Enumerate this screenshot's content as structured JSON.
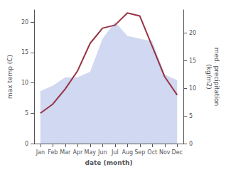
{
  "chart_data": {
    "type": "line",
    "categories": [
      "Jan",
      "Feb",
      "Mar",
      "Apr",
      "May",
      "Jun",
      "Jul",
      "Aug",
      "Sep",
      "Oct",
      "Nov",
      "Dec"
    ],
    "xlabel": "date (month)",
    "ylabel": "max temp (C)",
    "y2label": "med. precipitation\n(kg/m2)",
    "ylim": [
      0,
      22
    ],
    "yticks": [
      0,
      5,
      10,
      15,
      20
    ],
    "y2lim": [
      0,
      24.2
    ],
    "y2ticks": [
      0,
      5,
      10,
      15,
      20
    ],
    "grid": false,
    "series": [
      {
        "type": "area",
        "axis": "y2",
        "color": "#aab8e8",
        "values": [
          9.5,
          10.5,
          12.0,
          12.0,
          13.0,
          19.0,
          22.0,
          19.5,
          19.0,
          18.5,
          12.5,
          11.5
        ]
      },
      {
        "type": "line",
        "axis": "y",
        "color": "#993344",
        "values": [
          5.0,
          6.5,
          9.0,
          12.0,
          16.5,
          19.0,
          19.5,
          21.5,
          21.0,
          16.0,
          11.0,
          8.0
        ]
      }
    ]
  }
}
